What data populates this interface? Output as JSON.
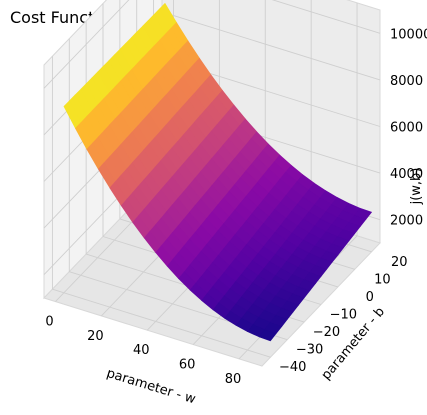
{
  "chart_data": {
    "type": "surface3d",
    "title": "Cost Function,Linear Regression Model ANSHP",
    "xlabel": "parameter - w",
    "ylabel": "parameter - b",
    "zlabel": "j(w,b)",
    "x_ticks": [
      0,
      20,
      40,
      60,
      80
    ],
    "y_ticks": [
      -40,
      -30,
      -20,
      -10,
      0,
      10,
      20
    ],
    "z_ticks": [
      2000,
      4000,
      6000,
      8000,
      10000
    ],
    "xlim": [
      -5,
      90
    ],
    "ylim": [
      -45,
      25
    ],
    "zlim": [
      1000,
      11000
    ],
    "colormap": "plasma",
    "grid": true,
    "surface": {
      "w_range": [
        0,
        90
      ],
      "b_range": [
        -40,
        20
      ],
      "corner_values": [
        {
          "w": 0,
          "b": 20,
          "cost": 8900
        },
        {
          "w": 0,
          "b": -40,
          "cost": 9000
        },
        {
          "w": 90,
          "b": 20,
          "cost": 2700
        },
        {
          "w": 90,
          "b": -40,
          "cost": 1700
        },
        {
          "w": 50,
          "b": -40,
          "cost": 1700
        }
      ]
    }
  }
}
